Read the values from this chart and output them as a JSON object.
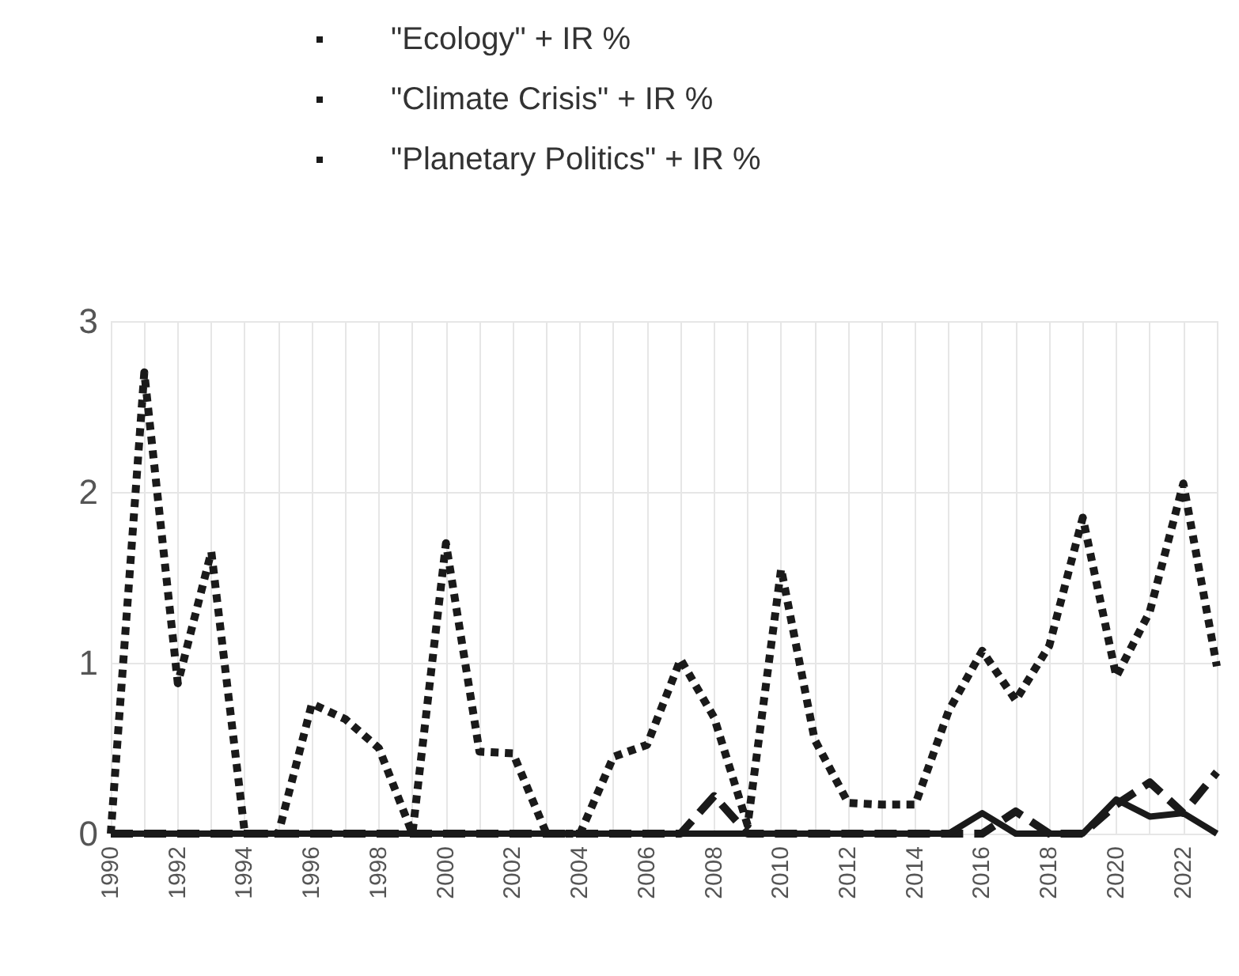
{
  "chart_data": {
    "type": "line",
    "categories": [
      "1990",
      null,
      "1992",
      null,
      "1994",
      null,
      "1996",
      null,
      "1998",
      null,
      "2000",
      null,
      "2002",
      null,
      "2004",
      null,
      "2006",
      null,
      "2008",
      null,
      "2010",
      null,
      "2012",
      null,
      "2014",
      null,
      "2016",
      null,
      "2018",
      null,
      "2020",
      null,
      "2022",
      null
    ],
    "series": [
      {
        "name": "\"Ecology\" + IR %",
        "color": "#1a1a1a",
        "line_style": "dotted",
        "values": [
          0,
          2.7,
          0.88,
          1.65,
          0,
          0,
          0.76,
          0.67,
          0.5,
          0,
          1.7,
          0.48,
          0.47,
          0,
          0,
          0.45,
          0.52,
          1.02,
          0.68,
          0.05,
          1.55,
          0.55,
          0.18,
          0.17,
          0.17,
          0.72,
          1.07,
          0.78,
          1.1,
          1.85,
          0.92,
          1.3,
          2.05,
          0.98
        ]
      },
      {
        "name": "\"Climate Crisis\" + IR %",
        "color": "#1a1a1a",
        "line_style": "dashed",
        "values": [
          0,
          0,
          0,
          0,
          0,
          0,
          0,
          0,
          0,
          0,
          0,
          0,
          0,
          0,
          0,
          0,
          0,
          0,
          0.22,
          0,
          0,
          0,
          0,
          0,
          0,
          0,
          0,
          0.13,
          0,
          0,
          0.17,
          0.3,
          0.12,
          0.36
        ]
      },
      {
        "name": "\"Planetary Politics\" + IR %",
        "color": "#1a1a1a",
        "line_style": "solid",
        "values": [
          0,
          0,
          0,
          0,
          0,
          0,
          0,
          0,
          0,
          0,
          0,
          0,
          0,
          0,
          0,
          0,
          0,
          0,
          0,
          0,
          0,
          0,
          0,
          0,
          0,
          0,
          0.12,
          0,
          0,
          0,
          0.2,
          0.1,
          0.12,
          0
        ]
      }
    ],
    "ylim": [
      0,
      3
    ],
    "yticks": [
      0,
      1,
      2,
      3
    ],
    "grid": true,
    "legend": "top",
    "marker": "none"
  }
}
